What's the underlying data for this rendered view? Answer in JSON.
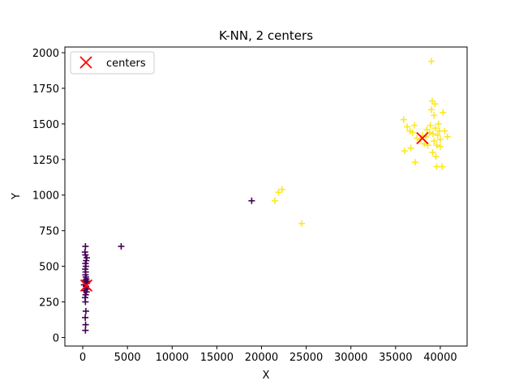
{
  "chart_data": {
    "type": "scatter",
    "title": "K-NN, 2 centers",
    "xlabel": "X",
    "ylabel": "Y",
    "xlim": [
      -2000,
      43000
    ],
    "ylim": [
      -60,
      2040
    ],
    "xticks": [
      0,
      5000,
      10000,
      15000,
      20000,
      25000,
      30000,
      35000,
      40000
    ],
    "yticks": [
      0,
      250,
      500,
      750,
      1000,
      1250,
      1500,
      1750,
      2000
    ],
    "legend": {
      "position": "top-left",
      "label": "centers"
    },
    "colors": {
      "cluster_0": "#440154",
      "cluster_1": "#fde725",
      "centers": "#ff0000"
    },
    "series": [
      {
        "name": "cluster 0",
        "color": "#440154",
        "marker": "plus",
        "points": [
          [
            300,
            50
          ],
          [
            320,
            90
          ],
          [
            280,
            140
          ],
          [
            350,
            185
          ],
          [
            300,
            250
          ],
          [
            260,
            280
          ],
          [
            330,
            300
          ],
          [
            420,
            320
          ],
          [
            200,
            330
          ],
          [
            500,
            340
          ],
          [
            360,
            360
          ],
          [
            150,
            370
          ],
          [
            450,
            380
          ],
          [
            300,
            390
          ],
          [
            550,
            395
          ],
          [
            250,
            400
          ],
          [
            400,
            410
          ],
          [
            350,
            425
          ],
          [
            300,
            440
          ],
          [
            330,
            460
          ],
          [
            280,
            480
          ],
          [
            350,
            500
          ],
          [
            300,
            520
          ],
          [
            380,
            540
          ],
          [
            450,
            560
          ],
          [
            300,
            580
          ],
          [
            250,
            600
          ],
          [
            300,
            640
          ],
          [
            4300,
            640
          ],
          [
            18900,
            960
          ]
        ]
      },
      {
        "name": "cluster 1",
        "color": "#fde725",
        "marker": "plus",
        "points": [
          [
            21500,
            960
          ],
          [
            21900,
            1020
          ],
          [
            22300,
            1040
          ],
          [
            24500,
            800
          ],
          [
            35900,
            1530
          ],
          [
            36000,
            1310
          ],
          [
            36300,
            1480
          ],
          [
            36600,
            1450
          ],
          [
            36700,
            1330
          ],
          [
            36900,
            1440
          ],
          [
            37100,
            1490
          ],
          [
            37200,
            1230
          ],
          [
            37400,
            1400
          ],
          [
            37800,
            1390
          ],
          [
            38000,
            1420
          ],
          [
            38200,
            1360
          ],
          [
            38400,
            1410
          ],
          [
            38500,
            1460
          ],
          [
            38600,
            1350
          ],
          [
            38800,
            1440
          ],
          [
            38900,
            1490
          ],
          [
            39000,
            1600
          ],
          [
            39000,
            1940
          ],
          [
            39100,
            1660
          ],
          [
            39150,
            1300
          ],
          [
            39200,
            1430
          ],
          [
            39300,
            1560
          ],
          [
            39300,
            1380
          ],
          [
            39400,
            1640
          ],
          [
            39450,
            1470
          ],
          [
            39500,
            1270
          ],
          [
            39600,
            1350
          ],
          [
            39600,
            1200
          ],
          [
            39700,
            1420
          ],
          [
            39800,
            1500
          ],
          [
            39900,
            1450
          ],
          [
            40000,
            1390
          ],
          [
            40000,
            1340
          ],
          [
            40200,
            1200
          ],
          [
            40300,
            1580
          ],
          [
            40500,
            1450
          ],
          [
            40800,
            1410
          ]
        ]
      }
    ],
    "centers": [
      {
        "label": "centers",
        "x": 400,
        "y": 365
      },
      {
        "label": "centers",
        "x": 38000,
        "y": 1400
      }
    ]
  }
}
